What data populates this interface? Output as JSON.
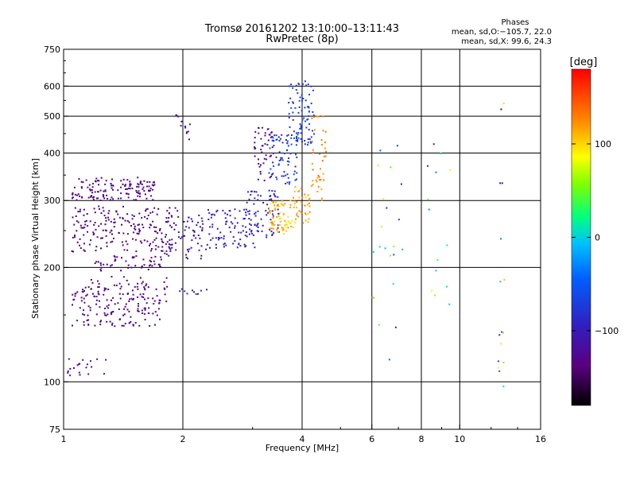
{
  "title": {
    "line1": "Tromsø 20161202 13:10:00–13:11:43",
    "line2": "RwPretec (8p)"
  },
  "stats": {
    "header": "Phases",
    "line1": "mean, sd,O:−105.7, 22.0",
    "line2": "mean, sd,X:  99.6, 24.3"
  },
  "colorbar": {
    "unit_label": "[deg]",
    "ticks": [
      {
        "label": "100",
        "value": 100
      },
      {
        "label": "0",
        "value": 0
      },
      {
        "label": "−100",
        "value": -100
      }
    ],
    "range": [
      -180,
      180
    ]
  },
  "chart_data": {
    "type": "scatter",
    "xlabel": "Frequency [MHz]",
    "ylabel": "Stationary phase Virtual Height [km]",
    "xscale": "log2",
    "yscale": "log",
    "xlim": [
      1,
      16
    ],
    "ylim": [
      75,
      750
    ],
    "xticks": [
      {
        "label": "1",
        "value": 1
      },
      {
        "label": "2",
        "value": 2
      },
      {
        "label": "4",
        "value": 4
      },
      {
        "label": "6",
        "value": 6
      },
      {
        "label": "8",
        "value": 8
      },
      {
        "label": "10",
        "value": 10
      },
      {
        "label": "16",
        "value": 16
      }
    ],
    "xgrid": [
      2,
      4,
      6,
      8,
      10
    ],
    "yticks": [
      {
        "label": "750",
        "value": 750
      },
      {
        "label": "600",
        "value": 600
      },
      {
        "label": "500",
        "value": 500
      },
      {
        "label": "400",
        "value": 400
      },
      {
        "label": "300",
        "value": 300
      },
      {
        "label": "200",
        "value": 200
      },
      {
        "label": "100",
        "value": 100
      },
      {
        "label": "75",
        "value": 75
      }
    ],
    "ygrid": [
      100,
      200,
      300,
      400,
      500,
      600
    ],
    "grid": true,
    "point_groups": [
      {
        "f": [
          1.05,
          1.7
        ],
        "h": [
          300,
          345
        ],
        "phase": [
          -145,
          -115
        ],
        "n": 140
      },
      {
        "f": [
          1.05,
          1.95
        ],
        "h": [
          220,
          290
        ],
        "phase": [
          -148,
          -120
        ],
        "n": 200
      },
      {
        "f": [
          1.2,
          1.8
        ],
        "h": [
          195,
          215
        ],
        "phase": [
          -145,
          -120
        ],
        "n": 50
      },
      {
        "f": [
          1.05,
          1.75
        ],
        "h": [
          140,
          180
        ],
        "phase": [
          -145,
          -115
        ],
        "n": 150
      },
      {
        "f": [
          1.15,
          1.85
        ],
        "h": [
          160,
          190
        ],
        "phase": [
          -140,
          -120
        ],
        "n": 40
      },
      {
        "f": [
          1.02,
          1.3
        ],
        "h": [
          102,
          115
        ],
        "phase": [
          -130,
          -100
        ],
        "n": 20
      },
      {
        "f": [
          1.8,
          2.3
        ],
        "h": [
          210,
          275
        ],
        "phase": [
          -120,
          -95
        ],
        "n": 60
      },
      {
        "f": [
          2.3,
          3.1
        ],
        "h": [
          225,
          285
        ],
        "phase": [
          -110,
          -85
        ],
        "n": 90
      },
      {
        "f": [
          2.9,
          3.5
        ],
        "h": [
          240,
          320
        ],
        "phase": [
          -105,
          -80
        ],
        "n": 70
      },
      {
        "f": [
          3.0,
          3.4
        ],
        "h": [
          330,
          470
        ],
        "phase": [
          -135,
          -110
        ],
        "n": 50
      },
      {
        "f": [
          3.3,
          3.9
        ],
        "h": [
          330,
          450
        ],
        "phase": [
          -90,
          -55
        ],
        "n": 70
      },
      {
        "f": [
          3.7,
          4.3
        ],
        "h": [
          420,
          620
        ],
        "phase": [
          -85,
          -55
        ],
        "n": 80
      },
      {
        "f": [
          3.3,
          3.8
        ],
        "h": [
          245,
          300
        ],
        "phase": [
          90,
          125
        ],
        "n": 70
      },
      {
        "f": [
          3.8,
          4.2
        ],
        "h": [
          260,
          330
        ],
        "phase": [
          95,
          135
        ],
        "n": 40
      },
      {
        "f": [
          4.2,
          4.6
        ],
        "h": [
          300,
          500
        ],
        "phase": [
          115,
          140
        ],
        "n": 40
      },
      {
        "f": [
          1.9,
          2.1
        ],
        "h": [
          430,
          510
        ],
        "phase": [
          -130,
          -110
        ],
        "n": 12
      },
      {
        "f": [
          1.95,
          2.3
        ],
        "h": [
          170,
          176
        ],
        "phase": [
          -100,
          -80
        ],
        "n": 10
      },
      {
        "f": [
          6.0,
          7.2
        ],
        "h": [
          110,
          420
        ],
        "phase": [
          -110,
          120
        ],
        "n": 22
      },
      {
        "f": [
          8.0,
          9.5
        ],
        "h": [
          150,
          430
        ],
        "phase": [
          -120,
          100
        ],
        "n": 14
      },
      {
        "f": [
          12.5,
          13.0
        ],
        "h": [
          95,
          590
        ],
        "phase": [
          -150,
          120
        ],
        "n": 16
      }
    ]
  }
}
